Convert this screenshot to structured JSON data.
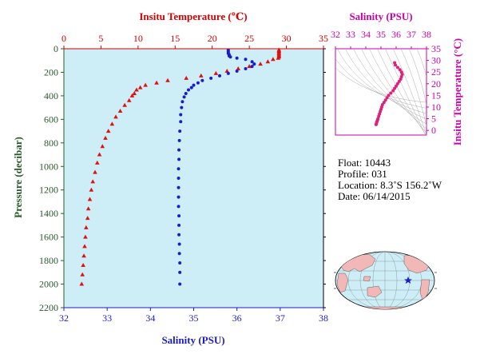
{
  "main_chart": {
    "top_axis_title": "Insitu Temperature (℃)",
    "bottom_axis_title": "Salinity (PSU)",
    "left_axis_title": "Pressure (decibar)",
    "temp_ticks": [
      "0",
      "5",
      "10",
      "15",
      "20",
      "25",
      "30",
      "35"
    ],
    "sal_ticks": [
      "32",
      "33",
      "34",
      "35",
      "36",
      "37",
      "38"
    ],
    "pres_ticks": [
      "0",
      "200",
      "400",
      "600",
      "800",
      "1000",
      "1200",
      "1400",
      "1600",
      "1800",
      "2000",
      "2200"
    ]
  },
  "ts_chart": {
    "top_axis_title": "Salinity (PSU)",
    "right_axis_title": "Insitu Temperature (°C)",
    "sal_ticks": [
      "32",
      "33",
      "34",
      "35",
      "36",
      "37",
      "38"
    ],
    "temp_ticks": [
      "0",
      "5",
      "10",
      "15",
      "20",
      "25",
      "30",
      "35"
    ]
  },
  "info": {
    "float_line": "Float:  10443",
    "profile_line": "Profile:  031",
    "location_line": "Location:  8.3˚S  156.2˚W",
    "date_line": "Date:  06/14/2015"
  },
  "colors": {
    "temperature": "#e01010",
    "salinity": "#1c1ccc",
    "plot_background": "#cdeef6",
    "ts_points": "#e0207a",
    "land": "#f2b8b8",
    "ocean": "#cdeef6"
  },
  "chart_data": [
    {
      "type": "scatter",
      "title": "",
      "xlabel_top": "Insitu Temperature (℃)",
      "xlabel_bottom": "Salinity (PSU)",
      "ylabel": "Pressure (decibar)",
      "xlim_temperature": [
        0,
        35
      ],
      "xlim_salinity": [
        32,
        38
      ],
      "ylim_pressure": [
        0,
        2200
      ],
      "y_inverted": true,
      "grid": false,
      "series": [
        {
          "name": "Insitu Temperature",
          "axis": "temperature",
          "marker": "triangle",
          "points": [
            [
              29.0,
              10
            ],
            [
              29.0,
              20
            ],
            [
              29.0,
              30
            ],
            [
              29.0,
              40
            ],
            [
              29.0,
              50
            ],
            [
              29.0,
              60
            ],
            [
              29.0,
              70
            ],
            [
              28.9,
              80
            ],
            [
              28.2,
              90
            ],
            [
              27.5,
              110
            ],
            [
              26.5,
              130
            ],
            [
              25.0,
              150
            ],
            [
              23.5,
              170
            ],
            [
              22.0,
              190
            ],
            [
              20.5,
              210
            ],
            [
              18.5,
              230
            ],
            [
              16.5,
              250
            ],
            [
              14.0,
              270
            ],
            [
              12.5,
              290
            ],
            [
              11.0,
              310
            ],
            [
              10.3,
              330
            ],
            [
              9.8,
              350
            ],
            [
              9.5,
              380
            ],
            [
              9.2,
              400
            ],
            [
              8.8,
              440
            ],
            [
              8.2,
              480
            ],
            [
              7.6,
              530
            ],
            [
              7.0,
              580
            ],
            [
              6.5,
              640
            ],
            [
              6.0,
              700
            ],
            [
              5.6,
              760
            ],
            [
              5.2,
              830
            ],
            [
              4.8,
              900
            ],
            [
              4.5,
              970
            ],
            [
              4.2,
              1050
            ],
            [
              3.9,
              1130
            ],
            [
              3.7,
              1200
            ],
            [
              3.5,
              1280
            ],
            [
              3.3,
              1360
            ],
            [
              3.2,
              1440
            ],
            [
              3.0,
              1520
            ],
            [
              2.9,
              1600
            ],
            [
              2.8,
              1680
            ],
            [
              2.7,
              1760
            ],
            [
              2.6,
              1840
            ],
            [
              2.5,
              1920
            ],
            [
              2.4,
              2000
            ]
          ]
        },
        {
          "name": "Salinity",
          "axis": "salinity",
          "marker": "circle",
          "points": [
            [
              35.8,
              10
            ],
            [
              35.8,
              20
            ],
            [
              35.8,
              30
            ],
            [
              35.8,
              40
            ],
            [
              35.82,
              50
            ],
            [
              35.82,
              60
            ],
            [
              35.85,
              70
            ],
            [
              36.0,
              80
            ],
            [
              36.2,
              90
            ],
            [
              36.35,
              110
            ],
            [
              36.4,
              130
            ],
            [
              36.35,
              150
            ],
            [
              36.2,
              170
            ],
            [
              36.0,
              190
            ],
            [
              35.8,
              210
            ],
            [
              35.6,
              230
            ],
            [
              35.4,
              250
            ],
            [
              35.2,
              270
            ],
            [
              35.1,
              290
            ],
            [
              35.0,
              310
            ],
            [
              34.95,
              330
            ],
            [
              34.88,
              350
            ],
            [
              34.82,
              380
            ],
            [
              34.78,
              410
            ],
            [
              34.74,
              450
            ],
            [
              34.72,
              500
            ],
            [
              34.7,
              560
            ],
            [
              34.7,
              620
            ],
            [
              34.68,
              700
            ],
            [
              34.67,
              780
            ],
            [
              34.66,
              860
            ],
            [
              34.66,
              940
            ],
            [
              34.65,
              1020
            ],
            [
              34.65,
              1100
            ],
            [
              34.65,
              1180
            ],
            [
              34.65,
              1260
            ],
            [
              34.65,
              1340
            ],
            [
              34.66,
              1420
            ],
            [
              34.66,
              1500
            ],
            [
              34.66,
              1580
            ],
            [
              34.67,
              1660
            ],
            [
              34.67,
              1740
            ],
            [
              34.68,
              1820
            ],
            [
              34.68,
              1900
            ],
            [
              34.68,
              2000
            ]
          ]
        }
      ]
    },
    {
      "type": "scatter",
      "title": "",
      "xlabel": "Salinity (PSU)",
      "ylabel": "Insitu Temperature (°C)",
      "xlim": [
        32,
        38
      ],
      "ylim": [
        -2,
        35
      ],
      "grid": false,
      "series": [
        {
          "name": "",
          "points": [
            [
              35.9,
              29
            ],
            [
              35.95,
              28
            ],
            [
              36.1,
              27
            ],
            [
              36.25,
              26
            ],
            [
              36.35,
              25
            ],
            [
              36.4,
              24
            ],
            [
              36.35,
              23
            ],
            [
              36.3,
              22
            ],
            [
              36.2,
              21
            ],
            [
              36.1,
              20
            ],
            [
              36.0,
              19
            ],
            [
              35.9,
              18
            ],
            [
              35.8,
              17
            ],
            [
              35.65,
              16
            ],
            [
              35.5,
              15
            ],
            [
              35.4,
              14
            ],
            [
              35.3,
              13
            ],
            [
              35.2,
              12
            ],
            [
              35.1,
              11
            ],
            [
              35.05,
              10
            ],
            [
              35.0,
              9
            ],
            [
              34.95,
              8
            ],
            [
              34.9,
              7
            ],
            [
              34.85,
              6
            ],
            [
              34.8,
              5
            ],
            [
              34.78,
              4.5
            ],
            [
              34.75,
              4
            ],
            [
              34.72,
              3.5
            ],
            [
              34.7,
              3
            ],
            [
              34.68,
              2.5
            ]
          ]
        }
      ]
    }
  ]
}
